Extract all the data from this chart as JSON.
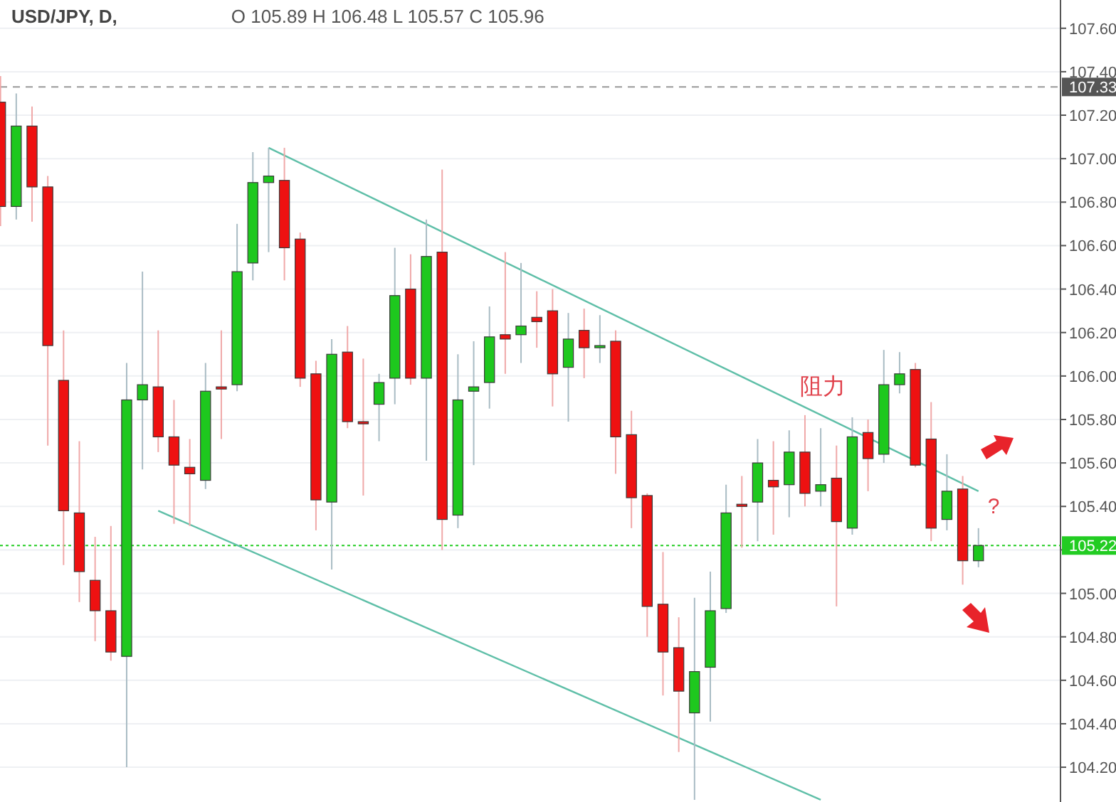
{
  "chart_data": {
    "type": "candlestick",
    "title": "USD/JPY, D,",
    "subtitle": "O 105.89  H 106.48  L 105.57  C 105.96",
    "categories": [
      null,
      null,
      null,
      null,
      null,
      null,
      null,
      null,
      null,
      null,
      null,
      null,
      null,
      null,
      null,
      null,
      null,
      null,
      null,
      null,
      null,
      null,
      null,
      null,
      null,
      null,
      null,
      null,
      null,
      null,
      null,
      null,
      null,
      null,
      null,
      null,
      null,
      null,
      null,
      null,
      null,
      null,
      null,
      null,
      null,
      null,
      null,
      null,
      null,
      null,
      null,
      null,
      null,
      null,
      null,
      null,
      null,
      null,
      null,
      null,
      null,
      null,
      null
    ],
    "ohlc": [
      [
        107.26,
        107.38,
        106.69,
        106.78
      ],
      [
        106.78,
        107.3,
        106.72,
        107.15
      ],
      [
        107.15,
        107.24,
        106.71,
        106.87
      ],
      [
        106.87,
        106.92,
        105.68,
        106.14
      ],
      [
        105.98,
        106.21,
        105.13,
        105.38
      ],
      [
        105.37,
        105.7,
        104.96,
        105.1
      ],
      [
        105.06,
        105.26,
        104.78,
        104.92
      ],
      [
        104.92,
        105.31,
        104.69,
        104.73
      ],
      [
        104.71,
        106.06,
        104.2,
        105.89
      ],
      [
        105.89,
        106.48,
        105.57,
        105.96
      ],
      [
        105.95,
        106.21,
        105.65,
        105.72
      ],
      [
        105.72,
        105.89,
        105.32,
        105.59
      ],
      [
        105.58,
        105.71,
        105.31,
        105.55
      ],
      [
        105.52,
        106.06,
        105.48,
        105.93
      ],
      [
        105.95,
        106.21,
        105.71,
        105.94
      ],
      [
        105.96,
        106.7,
        105.93,
        106.48
      ],
      [
        106.52,
        107.03,
        106.44,
        106.89
      ],
      [
        106.89,
        107.05,
        106.57,
        106.92
      ],
      [
        106.9,
        107.05,
        106.44,
        106.59
      ],
      [
        106.63,
        106.66,
        105.95,
        105.99
      ],
      [
        106.01,
        106.07,
        105.29,
        105.43
      ],
      [
        105.42,
        106.17,
        105.11,
        106.1
      ],
      [
        106.11,
        106.23,
        105.76,
        105.79
      ],
      [
        105.79,
        106.08,
        105.45,
        105.78
      ],
      [
        105.87,
        106.01,
        105.7,
        105.97
      ],
      [
        105.99,
        106.59,
        105.87,
        106.37
      ],
      [
        106.4,
        106.56,
        105.96,
        105.99
      ],
      [
        105.99,
        106.72,
        105.61,
        106.55
      ],
      [
        106.57,
        106.95,
        105.2,
        105.34
      ],
      [
        105.36,
        106.1,
        105.3,
        105.89
      ],
      [
        105.93,
        106.16,
        105.59,
        105.95
      ],
      [
        105.97,
        106.32,
        105.85,
        106.18
      ],
      [
        106.19,
        106.57,
        106.01,
        106.17
      ],
      [
        106.19,
        106.52,
        106.06,
        106.23
      ],
      [
        106.27,
        106.39,
        106.13,
        106.25
      ],
      [
        106.3,
        106.4,
        105.86,
        106.01
      ],
      [
        106.04,
        106.29,
        105.79,
        106.17
      ],
      [
        106.21,
        106.31,
        105.99,
        106.13
      ],
      [
        106.13,
        106.28,
        106.06,
        106.14
      ],
      [
        106.16,
        106.21,
        105.55,
        105.72
      ],
      [
        105.73,
        105.84,
        105.3,
        105.44
      ],
      [
        105.45,
        105.46,
        104.8,
        104.94
      ],
      [
        104.95,
        105.19,
        104.53,
        104.73
      ],
      [
        104.75,
        104.89,
        104.27,
        104.55
      ],
      [
        104.45,
        104.98,
        104.05,
        104.64
      ],
      [
        104.66,
        105.1,
        104.41,
        104.92
      ],
      [
        104.93,
        105.5,
        104.91,
        105.37
      ],
      [
        105.41,
        105.54,
        105.21,
        105.4
      ],
      [
        105.42,
        105.71,
        105.24,
        105.6
      ],
      [
        105.52,
        105.7,
        105.27,
        105.49
      ],
      [
        105.5,
        105.75,
        105.35,
        105.65
      ],
      [
        105.65,
        105.82,
        105.4,
        105.46
      ],
      [
        105.47,
        105.76,
        105.4,
        105.5
      ],
      [
        105.53,
        105.68,
        104.94,
        105.33
      ],
      [
        105.3,
        105.81,
        105.27,
        105.72
      ],
      [
        105.74,
        105.8,
        105.47,
        105.62
      ],
      [
        105.64,
        106.12,
        105.6,
        105.96
      ],
      [
        105.96,
        106.11,
        105.92,
        106.01
      ],
      [
        106.03,
        106.06,
        105.58,
        105.59
      ],
      [
        105.71,
        105.88,
        105.24,
        105.3
      ],
      [
        105.34,
        105.64,
        105.29,
        105.47
      ],
      [
        105.48,
        105.54,
        105.04,
        105.15
      ],
      [
        105.15,
        105.3,
        105.12,
        105.22
      ]
    ],
    "series": [
      {
        "type": "line",
        "color": "#5fbfa8",
        "values": [
          null,
          null,
          null,
          null,
          null,
          null,
          null,
          null,
          null,
          null,
          null,
          null,
          null,
          null,
          null,
          null,
          null,
          107.05,
          null,
          null,
          null,
          null,
          null,
          null,
          null,
          null,
          null,
          null,
          null,
          null,
          null,
          null,
          null,
          null,
          null,
          null,
          null,
          null,
          null,
          null,
          null,
          null,
          null,
          null,
          null,
          null,
          null,
          null,
          null,
          null,
          null,
          null,
          null,
          null,
          null,
          null,
          null,
          null,
          null,
          null,
          null,
          null,
          105.47
        ]
      },
      {
        "type": "line",
        "color": "#5fbfa8",
        "values": [
          null,
          null,
          null,
          null,
          null,
          null,
          null,
          null,
          null,
          null,
          105.38,
          null,
          null,
          null,
          null,
          null,
          null,
          null,
          null,
          null,
          null,
          null,
          null,
          null,
          null,
          null,
          null,
          null,
          null,
          null,
          null,
          null,
          null,
          null,
          null,
          null,
          null,
          null,
          null,
          null,
          null,
          null,
          null,
          null,
          null,
          null,
          null,
          null,
          null,
          null,
          null,
          null,
          104.05,
          null,
          null,
          null,
          null,
          null,
          null,
          null,
          null,
          null,
          null
        ]
      }
    ],
    "ylim": [
      104.04,
      107.73
    ],
    "yticks": [
      {
        "value": 104.2,
        "label": "104.20"
      },
      {
        "value": 104.4,
        "label": "104.40"
      },
      {
        "value": 104.6,
        "label": "104.60"
      },
      {
        "value": 104.8,
        "label": "104.80"
      },
      {
        "value": 105,
        "label": "105.00"
      },
      {
        "value": 105.2,
        "label": null
      },
      {
        "value": 105.4,
        "label": "105.40"
      },
      {
        "value": 105.6,
        "label": "105.60"
      },
      {
        "value": 105.8,
        "label": "105.80"
      },
      {
        "value": 106,
        "label": "106.00"
      },
      {
        "value": 106.2,
        "label": "106.20"
      },
      {
        "value": 106.4,
        "label": "106.40"
      },
      {
        "value": 106.6,
        "label": "106.60"
      },
      {
        "value": 106.8,
        "label": "106.80"
      },
      {
        "value": 107,
        "label": "107.00"
      },
      {
        "value": 107.2,
        "label": "107.20"
      },
      {
        "value": 107.4,
        "label": "107.40"
      },
      {
        "value": 107.6,
        "label": "107.60"
      }
    ],
    "grid": "y",
    "ref_lines": [
      {
        "axis": "y",
        "value": 107.33,
        "label": "107.33",
        "color": "#999999",
        "line_style": "dashed"
      },
      {
        "axis": "y",
        "value": 105.22,
        "label": "105.22",
        "color": "#22cc22",
        "line_style": "dotted"
      }
    ],
    "annotations": [
      "阻力",
      "?"
    ]
  }
}
